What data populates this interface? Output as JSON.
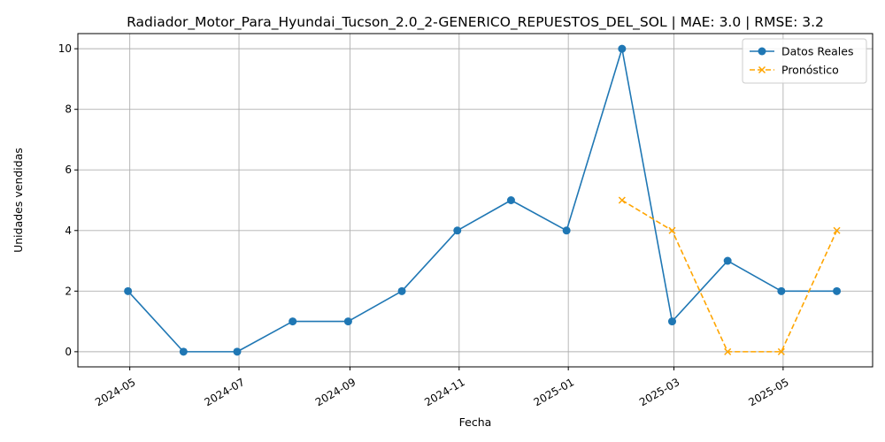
{
  "chart_data": {
    "type": "line",
    "title": "Radiador_Motor_Para_Hyundai_Tucson_2.0_2-GENERICO_REPUESTOS_DEL_SOL | MAE: 3.0 | RMSE: 3.2",
    "xlabel": "Fecha",
    "ylabel": "Unidades vendidas",
    "x_ticks": [
      "2024-05-01",
      "2024-07-01",
      "2024-09-01",
      "2024-11-01",
      "2025-01-01",
      "2025-03-01",
      "2025-05-01"
    ],
    "x_tick_labels": [
      "2024-05",
      "2024-07",
      "2024-09",
      "2024-11",
      "2025-01",
      "2025-03",
      "2025-05"
    ],
    "xlim": [
      "2024-04-02",
      "2025-06-20"
    ],
    "y_ticks": [
      0,
      2,
      4,
      6,
      8,
      10
    ],
    "ylim": [
      -0.5,
      10.5
    ],
    "grid": true,
    "legend_position": "top-right",
    "series": [
      {
        "name": "Datos Reales",
        "color": "#1f77b4",
        "line_style": "solid",
        "marker": "circle",
        "x": [
          "2024-04-30",
          "2024-05-31",
          "2024-06-30",
          "2024-07-31",
          "2024-08-31",
          "2024-09-30",
          "2024-10-31",
          "2024-11-30",
          "2024-12-31",
          "2025-01-31",
          "2025-02-28",
          "2025-03-31",
          "2025-04-30",
          "2025-05-31"
        ],
        "values": [
          2,
          0,
          0,
          1,
          1,
          2,
          4,
          5,
          4,
          10,
          1,
          3,
          2,
          2
        ]
      },
      {
        "name": "Pronóstico",
        "color": "#ffa500",
        "line_style": "dashed",
        "marker": "x",
        "x": [
          "2025-01-31",
          "2025-02-28",
          "2025-03-31",
          "2025-04-30",
          "2025-05-31"
        ],
        "values": [
          5,
          4,
          0,
          0,
          4
        ]
      }
    ]
  }
}
